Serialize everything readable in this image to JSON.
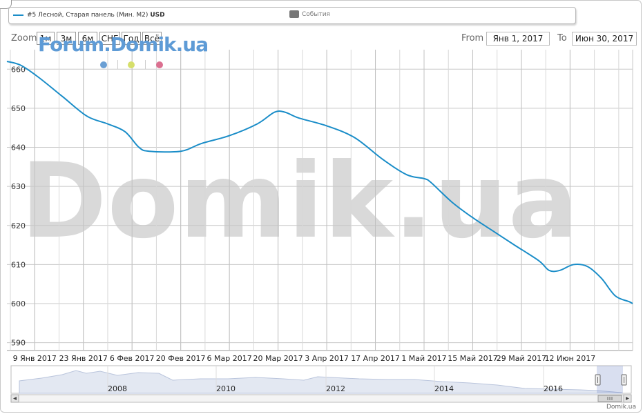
{
  "legend": {
    "series_label": "#5 Лесной, Старая панель (Мин. М2)",
    "series_unit": "USD",
    "events_label": "События",
    "series_color": "#1a8dc8",
    "events_color": "#777777"
  },
  "zoom": {
    "label": "Zoom",
    "buttons": [
      "1м",
      "3м",
      "6м",
      "СНГ",
      "Год",
      "Всё"
    ]
  },
  "range": {
    "from_label": "From",
    "from_value": "Янв 1, 2017",
    "to_label": "To",
    "to_value": "Июн 30, 2017"
  },
  "branding": {
    "logo_text": "Forum.Domik.ua",
    "watermark": "Domik.ua",
    "credit": "Domik.ua",
    "dot_colors": [
      "#6a9fd4",
      "#d6df6b",
      "#db7090"
    ]
  },
  "chart_data": {
    "type": "line",
    "title": "",
    "series": [
      {
        "name": "#5 Лесной, Старая панель (Мин. М2) USD",
        "color": "#1a8dc8",
        "points": [
          [
            "2017-01-01",
            662
          ],
          [
            "2017-01-05",
            661
          ],
          [
            "2017-01-10",
            658
          ],
          [
            "2017-01-17",
            653
          ],
          [
            "2017-01-24",
            648
          ],
          [
            "2017-01-30",
            646
          ],
          [
            "2017-02-04",
            644
          ],
          [
            "2017-02-08",
            640
          ],
          [
            "2017-02-11",
            639
          ],
          [
            "2017-02-20",
            639
          ],
          [
            "2017-02-26",
            641
          ],
          [
            "2017-03-06",
            643
          ],
          [
            "2017-03-14",
            646
          ],
          [
            "2017-03-19",
            649
          ],
          [
            "2017-03-22",
            649
          ],
          [
            "2017-03-26",
            647.5
          ],
          [
            "2017-04-03",
            645.5
          ],
          [
            "2017-04-11",
            642.5
          ],
          [
            "2017-04-19",
            637
          ],
          [
            "2017-04-26",
            633
          ],
          [
            "2017-05-01",
            632
          ],
          [
            "2017-05-03",
            631
          ],
          [
            "2017-05-09",
            626
          ],
          [
            "2017-05-15",
            622
          ],
          [
            "2017-05-21",
            618.5
          ],
          [
            "2017-05-27",
            615
          ],
          [
            "2017-06-03",
            611
          ],
          [
            "2017-06-06",
            608.5
          ],
          [
            "2017-06-09",
            608.5
          ],
          [
            "2017-06-13",
            610
          ],
          [
            "2017-06-17",
            609.5
          ],
          [
            "2017-06-21",
            606.5
          ],
          [
            "2017-06-25",
            602
          ],
          [
            "2017-06-29",
            600.5
          ],
          [
            "2017-06-30",
            600
          ]
        ]
      }
    ],
    "x_ticks": [
      "9 Янв 2017",
      "23 Янв 2017",
      "6 Фев 2017",
      "20 Фев 2017",
      "6 Мар 2017",
      "20 Мар 2017",
      "3 Апр 2017",
      "17 Апр 2017",
      "1 Май 2017",
      "15 Май 2017",
      "29 Май 2017",
      "12 Июн 2017"
    ],
    "x_tick_dates": [
      "2017-01-09",
      "2017-01-23",
      "2017-02-06",
      "2017-02-20",
      "2017-03-06",
      "2017-03-20",
      "2017-04-03",
      "2017-04-17",
      "2017-05-01",
      "2017-05-15",
      "2017-05-29",
      "2017-06-12"
    ],
    "y_ticks": [
      590,
      600,
      610,
      620,
      630,
      640,
      650,
      660
    ],
    "xlim": [
      "2017-01-01",
      "2017-06-30"
    ],
    "ylim": [
      588,
      665
    ],
    "grid": true,
    "legend_position": "top",
    "navigator": {
      "year_labels": [
        "2008",
        "2010",
        "2012",
        "2014",
        "2016"
      ]
    }
  }
}
